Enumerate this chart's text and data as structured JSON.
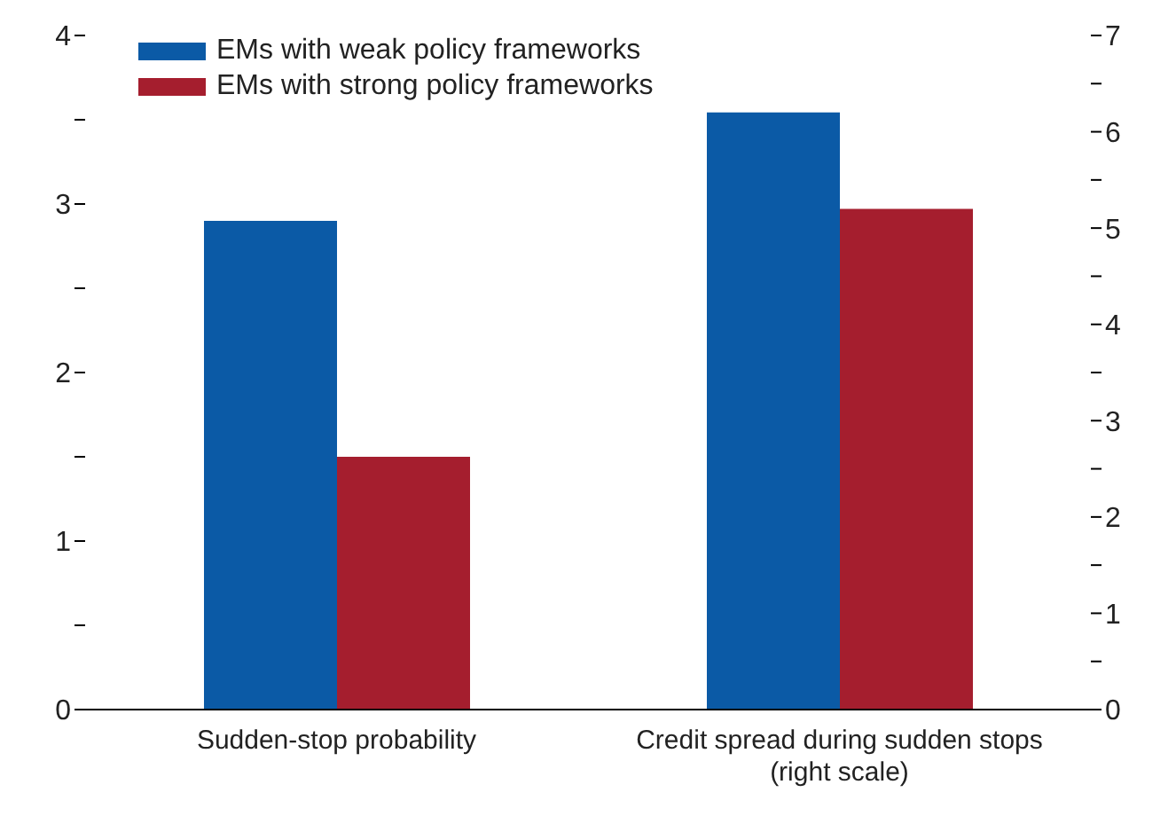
{
  "chart_data": {
    "type": "bar",
    "categories": [
      "Sudden-stop probability",
      "Credit spread during sudden stops (right scale)"
    ],
    "series": [
      {
        "name": "EMs with weak policy frameworks",
        "color": "#0b5aa6",
        "values": [
          2.9,
          null
        ]
      },
      {
        "name": "EMs with strong policy frameworks",
        "color": "#a51e2e",
        "values": [
          1.5,
          null
        ]
      },
      {
        "color": "#0b5aa6",
        "values": [
          null,
          6.2
        ],
        "axis": "y2"
      },
      {
        "color": "#a51e2e",
        "values": [
          null,
          5.2
        ],
        "axis": "y2"
      }
    ],
    "ylim": [
      0,
      4
    ],
    "yticks": [
      0,
      {
        "value": 0.5,
        "label": null
      },
      1,
      {
        "value": 1.5,
        "label": null
      },
      2,
      {
        "value": 2.5,
        "label": null
      },
      3,
      {
        "value": 3.5,
        "label": null
      },
      4
    ],
    "y2lim": [
      0,
      7
    ],
    "y2ticks": [
      0,
      {
        "value": 0.5,
        "label": null
      },
      1,
      {
        "value": 1.5,
        "label": null
      },
      2,
      {
        "value": 2.5,
        "label": null
      },
      3,
      {
        "value": 3.5,
        "label": null
      },
      4,
      {
        "value": 4.5,
        "label": null
      },
      5,
      {
        "value": 5.5,
        "label": null
      },
      6,
      {
        "value": 6.5,
        "label": null
      },
      7
    ],
    "legend": "top left"
  }
}
